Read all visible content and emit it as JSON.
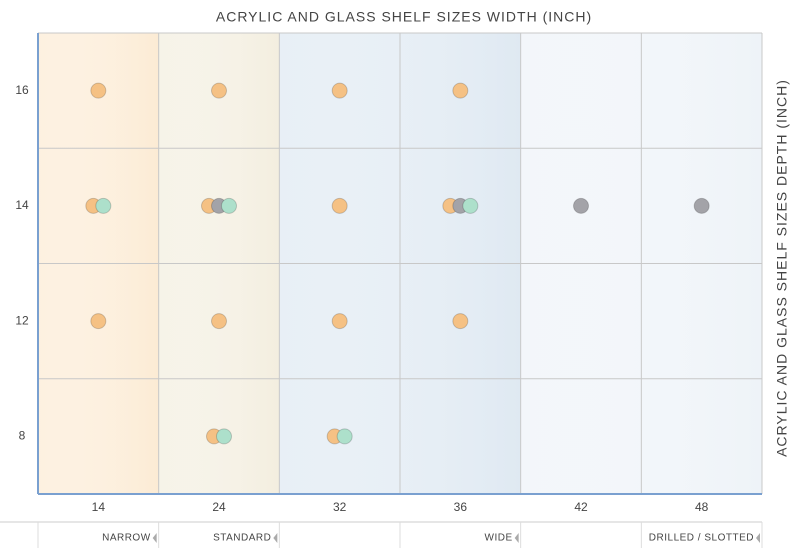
{
  "chart_data": {
    "type": "dotmatrix",
    "title": "ACRYLIC AND GLASS SHELF SIZES WIDTH (INCH)",
    "y_label": "ACRYLIC AND GLASS SHELF SIZES DEPTH (INCH)",
    "x_categories": [
      "14",
      "24",
      "32",
      "36",
      "42",
      "48"
    ],
    "y_categories": [
      "16",
      "14",
      "12",
      "8"
    ],
    "groups": [
      {
        "label": "NARROW",
        "end": "14",
        "color": "#fcebd4"
      },
      {
        "label": "STANDARD",
        "end": "24",
        "color": "#f3eedf"
      },
      {
        "label": "WIDE",
        "end": "36",
        "color": "#dfe9f2"
      },
      {
        "label": "DRILLED / SLOTTED",
        "end": "48",
        "color": "#eef3f8"
      }
    ],
    "series": [
      {
        "color": "#f5c184",
        "x": [
          "14",
          "24",
          "32",
          "36",
          "14",
          "24",
          "32",
          "36",
          "14",
          "24",
          "32",
          "36",
          "24",
          "32"
        ],
        "y": [
          "16",
          "16",
          "16",
          "16",
          "14",
          "14",
          "14",
          "14",
          "12",
          "12",
          "12",
          "12",
          "8",
          "8"
        ]
      },
      {
        "color": "#a3a3a8",
        "x": [
          "24",
          "36",
          "42",
          "48"
        ],
        "y": [
          "14",
          "14",
          "14",
          "14"
        ]
      },
      {
        "color": "#ade0cb",
        "x": [
          "14",
          "24",
          "36",
          "24",
          "32"
        ],
        "y": [
          "14",
          "14",
          "14",
          "8",
          "8"
        ]
      }
    ]
  }
}
